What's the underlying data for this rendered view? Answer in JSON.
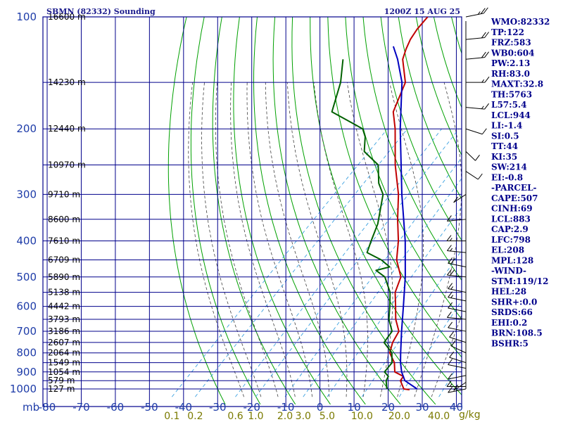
{
  "header": {
    "station_title": "SBMN (82332) Sounding",
    "time_label": "1200Z 15 AUG 25"
  },
  "colors": {
    "grid": "#00008b",
    "dry_adiabat": "#00a000",
    "moist_adiabat": "#404040",
    "mixing_ratio": "#3aa0e0",
    "temperature": "#c00000",
    "dewpoint": "#006000",
    "parcel": "#0000c0"
  },
  "indices": [
    "WMO:82332",
    "TP:122",
    "FRZ:583",
    "WB0:604",
    "PW:2.13",
    "RH:83.0",
    "MAXT:32.8",
    "TH:5763",
    "L57:5.4",
    "LCL:944",
    "LI:-1.4",
    "SI:0.5",
    "TT:44",
    "KI:35",
    "SW:214",
    "EI:-0.8",
    "-PARCEL-",
    "CAPE:507",
    "CINH:69",
    "LCL:883",
    "CAP:2.9",
    "LFC:798",
    "EL:208",
    "MPL:128",
    "-WIND-",
    "STM:119/12",
    "HEL:28",
    "SHR+:0.0",
    "SRDS:66",
    "EHI:0.2",
    "BRN:108.5",
    "BSHR:5"
  ],
  "chart_data": {
    "type": "skew-t log-p sounding",
    "pressure_unit_label": "mb",
    "mixing_ratio_unit_label": "g/kg",
    "pressure_axis": {
      "levels": [
        100,
        150,
        200,
        250,
        300,
        350,
        400,
        450,
        500,
        550,
        600,
        650,
        700,
        750,
        800,
        850,
        900,
        950,
        1000
      ],
      "labels": [
        {
          "p": 100,
          "text": "100"
        },
        {
          "p": 200,
          "text": "200"
        },
        {
          "p": 300,
          "text": "300"
        },
        {
          "p": 400,
          "text": "400"
        },
        {
          "p": 500,
          "text": "500"
        },
        {
          "p": 600,
          "text": "600"
        },
        {
          "p": 700,
          "text": "700"
        },
        {
          "p": 800,
          "text": "800"
        },
        {
          "p": 900,
          "text": "900"
        },
        {
          "p": 1000,
          "text": "1000"
        }
      ],
      "range": [
        100,
        1050
      ]
    },
    "temperature_axis": {
      "ticks": [
        -80,
        -70,
        -60,
        -50,
        -40,
        -30,
        -20,
        -10,
        0,
        10,
        20,
        30,
        40
      ],
      "labels": [
        "-80",
        "-70",
        "-60",
        "-50",
        "-40",
        "-30",
        "-20",
        "-10",
        "0",
        "10",
        "20",
        "30",
        "40"
      ],
      "range": [
        -80,
        40
      ]
    },
    "height_labels": [
      {
        "p": 100,
        "text": "16600 m"
      },
      {
        "p": 150,
        "text": "14230 m"
      },
      {
        "p": 200,
        "text": "12440 m"
      },
      {
        "p": 250,
        "text": "10970 m"
      },
      {
        "p": 300,
        "text": "9710 m"
      },
      {
        "p": 350,
        "text": "8600 m"
      },
      {
        "p": 400,
        "text": "7610 m"
      },
      {
        "p": 450,
        "text": "6709 m"
      },
      {
        "p": 500,
        "text": "5890 m"
      },
      {
        "p": 550,
        "text": "5138 m"
      },
      {
        "p": 600,
        "text": "4442 m"
      },
      {
        "p": 650,
        "text": "3793 m"
      },
      {
        "p": 700,
        "text": "3186 m"
      },
      {
        "p": 750,
        "text": "2607 m"
      },
      {
        "p": 800,
        "text": "2064 m"
      },
      {
        "p": 850,
        "text": "1549 m"
      },
      {
        "p": 900,
        "text": "1054 m"
      },
      {
        "p": 950,
        "text": "579 m"
      },
      {
        "p": 1000,
        "text": "127 m"
      }
    ],
    "mixing_ratio_labels": [
      {
        "w": 0.1,
        "text": "0.1"
      },
      {
        "w": 0.2,
        "text": "0.2"
      },
      {
        "w": 0.6,
        "text": "0.6"
      },
      {
        "w": 1.0,
        "text": "1.0"
      },
      {
        "w": 2.0,
        "text": "2.0"
      },
      {
        "w": 3.0,
        "text": "3.0"
      },
      {
        "w": 5.0,
        "text": "5.0"
      },
      {
        "w": 10.0,
        "text": "10.0"
      },
      {
        "w": 20.0,
        "text": "20.0"
      },
      {
        "w": 40.0,
        "text": "40.0"
      }
    ],
    "dry_adiabats_theta_c": [
      -30,
      -20,
      -10,
      0,
      10,
      20,
      30,
      40,
      50,
      60,
      70,
      80,
      90,
      100,
      110,
      120,
      130,
      140,
      150,
      160,
      170,
      180,
      190,
      200,
      210,
      220
    ],
    "moist_adiabats_thetaw_c": [
      -20,
      -15,
      -10,
      -5,
      0,
      5,
      10,
      15,
      20,
      25,
      30,
      35
    ],
    "series": [
      {
        "name": "Temperature",
        "points": [
          [
            1005,
            26.5
          ],
          [
            1000,
            24.6
          ],
          [
            950,
            21.2
          ],
          [
            925,
            20.8
          ],
          [
            900,
            17.0
          ],
          [
            850,
            14.2
          ],
          [
            800,
            10.0
          ],
          [
            750,
            7.8
          ],
          [
            700,
            6.4
          ],
          [
            650,
            2.0
          ],
          [
            600,
            -1.8
          ],
          [
            550,
            -6.0
          ],
          [
            500,
            -8.8
          ],
          [
            450,
            -15.0
          ],
          [
            400,
            -20.0
          ],
          [
            350,
            -26.5
          ],
          [
            300,
            -33.5
          ],
          [
            250,
            -43.0
          ],
          [
            200,
            -53.5
          ],
          [
            180,
            -59.0
          ],
          [
            150,
            -64.0
          ],
          [
            130,
            -71.5
          ],
          [
            122,
            -73.5
          ],
          [
            115,
            -75.0
          ],
          [
            108,
            -76.0
          ],
          [
            100,
            -76.5
          ]
        ]
      },
      {
        "name": "Dewpoint",
        "points": [
          [
            1000,
            19.6
          ],
          [
            950,
            17.0
          ],
          [
            925,
            16.4
          ],
          [
            900,
            14.0
          ],
          [
            850,
            13.5
          ],
          [
            800,
            10.6
          ],
          [
            750,
            5.3
          ],
          [
            700,
            4.4
          ],
          [
            650,
            0.0
          ],
          [
            600,
            -3.5
          ],
          [
            550,
            -7.5
          ],
          [
            500,
            -13.5
          ],
          [
            480,
            -18.0
          ],
          [
            470,
            -15.0
          ],
          [
            450,
            -19.5
          ],
          [
            430,
            -25.8
          ],
          [
            400,
            -28.0
          ],
          [
            360,
            -31.0
          ],
          [
            300,
            -38.0
          ],
          [
            280,
            -42.5
          ],
          [
            250,
            -48.0
          ],
          [
            230,
            -56.0
          ],
          [
            210,
            -60.0
          ],
          [
            200,
            -63.0
          ],
          [
            180,
            -77.0
          ],
          [
            150,
            -83.0
          ],
          [
            130,
            -89.0
          ]
        ]
      },
      {
        "name": "Parcel",
        "points": [
          [
            1000,
            28.5
          ],
          [
            950,
            22.5
          ],
          [
            900,
            19.0
          ],
          [
            850,
            16.0
          ],
          [
            800,
            13.2
          ],
          [
            700,
            7.2
          ],
          [
            600,
            0.5
          ],
          [
            500,
            -7.5
          ],
          [
            400,
            -18.0
          ],
          [
            300,
            -32.5
          ],
          [
            200,
            -52.0
          ],
          [
            150,
            -65.0
          ],
          [
            130,
            -73.0
          ],
          [
            120,
            -78.0
          ]
        ]
      }
    ],
    "wind_barbs": [
      {
        "p": 100,
        "dir": 70,
        "spd": 25
      },
      {
        "p": 115,
        "dir": 80,
        "spd": 20
      },
      {
        "p": 130,
        "dir": 80,
        "spd": 20
      },
      {
        "p": 150,
        "dir": 90,
        "spd": 15
      },
      {
        "p": 175,
        "dir": 100,
        "spd": 15
      },
      {
        "p": 200,
        "dir": 120,
        "spd": 10
      },
      {
        "p": 230,
        "dir": 150,
        "spd": 10
      },
      {
        "p": 260,
        "dir": 140,
        "spd": 10
      },
      {
        "p": 300,
        "dir": 220,
        "spd": 10
      },
      {
        "p": 350,
        "dir": 260,
        "spd": 10
      },
      {
        "p": 400,
        "dir": 270,
        "spd": 15
      },
      {
        "p": 430,
        "dir": 280,
        "spd": 15
      },
      {
        "p": 470,
        "dir": 290,
        "spd": 20
      },
      {
        "p": 500,
        "dir": 280,
        "spd": 20
      },
      {
        "p": 550,
        "dir": 290,
        "spd": 15
      },
      {
        "p": 580,
        "dir": 290,
        "spd": 15
      },
      {
        "p": 620,
        "dir": 290,
        "spd": 10
      },
      {
        "p": 650,
        "dir": 280,
        "spd": 10
      },
      {
        "p": 700,
        "dir": 290,
        "spd": 10
      },
      {
        "p": 750,
        "dir": 300,
        "spd": 10
      },
      {
        "p": 800,
        "dir": 310,
        "spd": 10
      },
      {
        "p": 850,
        "dir": 300,
        "spd": 10
      },
      {
        "p": 880,
        "dir": 290,
        "spd": 10
      },
      {
        "p": 920,
        "dir": 250,
        "spd": 10
      },
      {
        "p": 960,
        "dir": 220,
        "spd": 10
      },
      {
        "p": 985,
        "dir": 270,
        "spd": 15
      },
      {
        "p": 1000,
        "dir": 250,
        "spd": 10
      }
    ]
  }
}
